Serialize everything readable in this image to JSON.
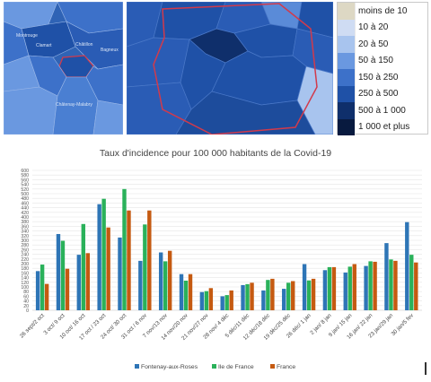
{
  "legend": {
    "items": [
      {
        "label": "moins de 10",
        "color": "#ddd8c4"
      },
      {
        "label": "10 à 20",
        "color": "#cfdcf3"
      },
      {
        "label": "20 à 50",
        "color": "#a8c4ee"
      },
      {
        "label": "50 à 150",
        "color": "#6a98e0"
      },
      {
        "label": "150 à 250",
        "color": "#3d71c9"
      },
      {
        "label": "250 à 500",
        "color": "#1f51a7"
      },
      {
        "label": "500 à 1 000",
        "color": "#0f2f6b"
      },
      {
        "label": "1 000 et plus",
        "color": "#081a3f"
      }
    ]
  },
  "map_left": {
    "labels": [
      "Montrouge",
      "Clamart",
      "Châtillon",
      "Bagneux",
      "Châtenay-Malabry"
    ]
  },
  "chart_data": {
    "type": "bar",
    "title": "Taux d'incidence pour 100 000 habitants de la Covid-19",
    "categories": [
      "26 sept/2 oct",
      "3 oct/ 9 oct",
      "10 oct/ 16 oct",
      "17 oct / 23 oct",
      "24 oct/ 30 oct",
      "31 oct / 6 nov",
      "7 nov/13 nov",
      "14 nov/20 nov",
      "21 nov/27 nov",
      "28 nov/ 4 déc",
      "5 déc/11 déc",
      "12 déc/18 déc",
      "19 déc/25 déc",
      "26 déc/ 1 jan",
      "2 jan/ 8 jan",
      "9 jan/ 15 jan",
      "16 jan/ 22 jan",
      "23 jan/29 jan",
      "30 jan/5 fev"
    ],
    "series": [
      {
        "name": "Fontenay-aux-Roses",
        "color": "#2e75b6",
        "values": [
          168,
          327,
          238,
          455,
          312,
          212,
          248,
          155,
          78,
          60,
          108,
          85,
          92,
          198,
          172,
          162,
          190,
          288,
          378
        ]
      },
      {
        "name": "Ile de France",
        "color": "#2ab15a",
        "values": [
          196,
          298,
          370,
          478,
          520,
          368,
          210,
          127,
          82,
          65,
          112,
          130,
          118,
          128,
          185,
          187,
          210,
          218,
          238
        ]
      },
      {
        "name": "France",
        "color": "#c55a11",
        "values": [
          113,
          178,
          245,
          355,
          428,
          428,
          255,
          155,
          95,
          85,
          118,
          135,
          125,
          135,
          185,
          198,
          208,
          212,
          205
        ]
      }
    ],
    "ylim": [
      0,
      600
    ],
    "yticks": [
      0,
      20,
      40,
      60,
      80,
      100,
      120,
      140,
      160,
      180,
      200,
      220,
      240,
      260,
      280,
      300,
      320,
      340,
      360,
      380,
      400,
      420,
      440,
      460,
      480,
      500,
      520,
      540,
      560,
      580,
      600
    ],
    "grid": true,
    "legend_position": "bottom"
  }
}
